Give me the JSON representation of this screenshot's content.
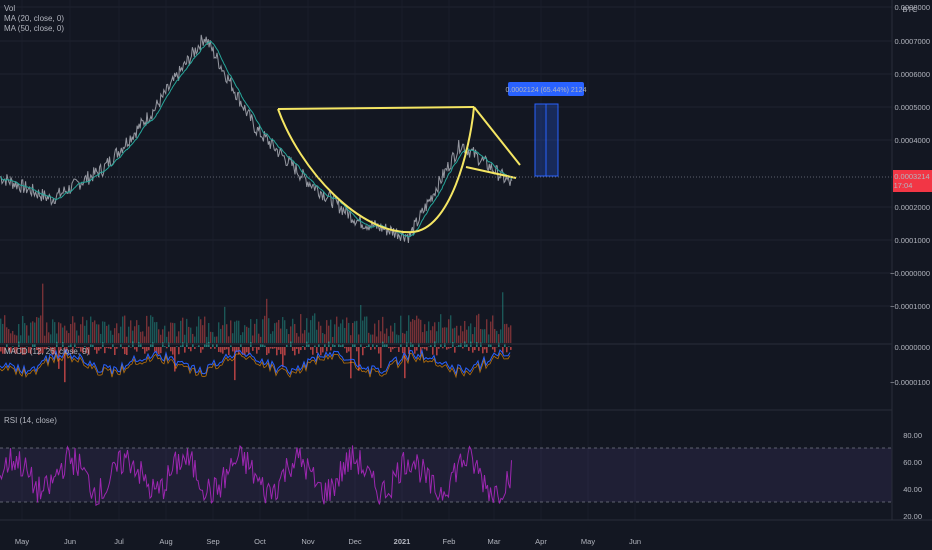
{
  "legend": {
    "vol": "Vol",
    "ma20": "MA (20, close, 0)",
    "ma50": "MA (50, close, 0)",
    "macd": "MACD (12, 26, close, 9)",
    "rsi": "RSI (14, close)"
  },
  "currency": "BTC",
  "price_axis_labels": [
    "0.0008000",
    "0.0007000",
    "0.0006000",
    "0.0005000",
    "0.0004000",
    "0.0002000",
    "0.0001000",
    "−0.0000000",
    "−0.0001000"
  ],
  "macd_axis_labels": [
    "0.0000000",
    "−0.0000100"
  ],
  "rsi_axis_labels": [
    "80.00",
    "60.00",
    "40.00",
    "20.00"
  ],
  "time_labels": [
    "May",
    "Jun",
    "Jul",
    "Aug",
    "Sep",
    "Oct",
    "Nov",
    "Dec",
    "2021",
    "Feb",
    "Mar",
    "Apr",
    "May",
    "Jun"
  ],
  "last_price": {
    "value": "0.0003214",
    "countdown": "17:04",
    "color": "#f23645"
  },
  "measure_label": "0.0002124 (65.44%) 2124",
  "colors": {
    "background": "#131722",
    "grid": "#1f2330",
    "pattern": "#f5e663",
    "ma": "#26a69a",
    "rsi": "#9c27b0",
    "up": "#26a69a",
    "down": "#ef5350",
    "measure": "#2962ff"
  },
  "chart_data": {
    "type": "line",
    "title": "",
    "ylabel": "BTC",
    "ylim": [
      8e-05,
      0.0008
    ],
    "x": [
      "2020-05",
      "2020-06",
      "2020-07",
      "2020-08",
      "2020-09",
      "2020-10",
      "2020-11",
      "2020-12",
      "2021-01",
      "2021-02",
      "2021-03"
    ],
    "series": [
      {
        "values": [
          0.00034,
          0.00028,
          0.00036,
          0.00052,
          0.00072,
          0.00047,
          0.00033,
          0.00022,
          0.00018,
          0.00043,
          0.00032
        ]
      }
    ],
    "annotations": [
      {
        "type": "cup_and_handle"
      },
      {
        "type": "price_range",
        "value": 0.0002124,
        "percent": 65.44
      }
    ],
    "rsi_levels": [
      70,
      30
    ]
  }
}
